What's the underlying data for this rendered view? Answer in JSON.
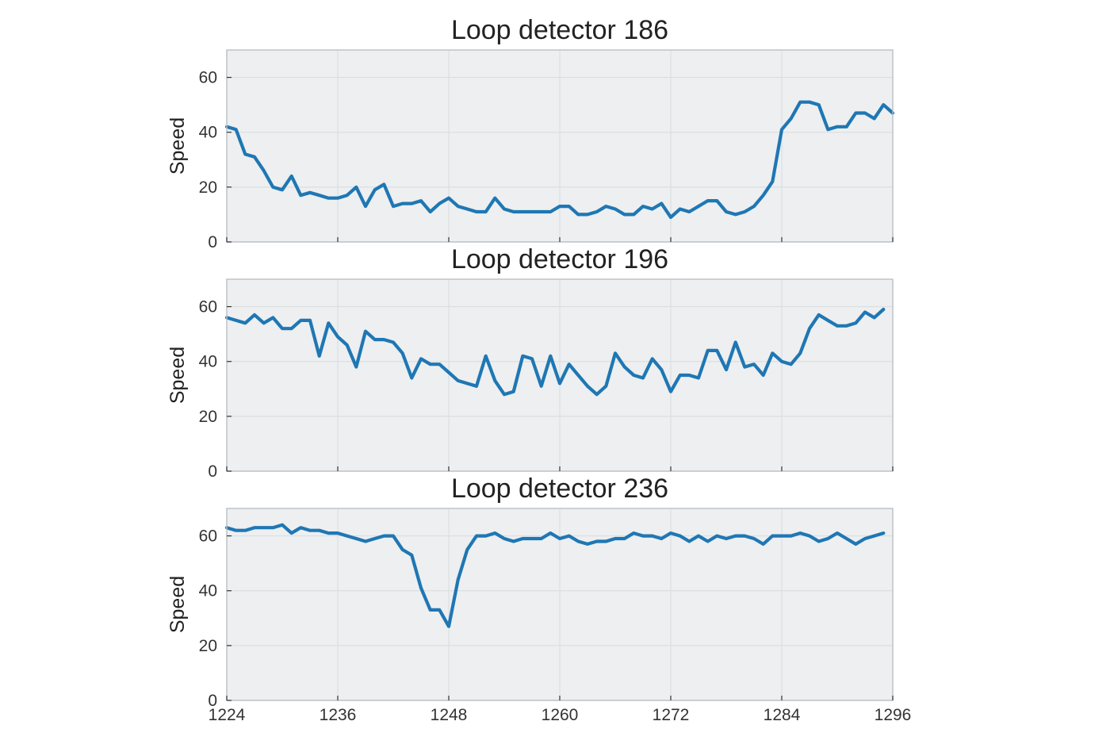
{
  "chart_data": [
    {
      "type": "line",
      "title": "Loop detector 186",
      "xlabel": "",
      "ylabel": "Speed",
      "xlim": [
        1224,
        1296
      ],
      "ylim": [
        0,
        70
      ],
      "yticks": [
        0,
        20,
        40,
        60
      ],
      "xticks": [
        1224,
        1236,
        1248,
        1260,
        1272,
        1284,
        1296
      ],
      "show_xticklabels": false,
      "grid": true,
      "line_color": "#1f77b4",
      "x_start": 1224,
      "x_step": 1,
      "values": [
        42,
        41,
        32,
        31,
        26,
        20,
        19,
        24,
        17,
        18,
        17,
        16,
        16,
        17,
        20,
        13,
        19,
        21,
        13,
        14,
        14,
        15,
        11,
        14,
        16,
        13,
        12,
        11,
        11,
        16,
        12,
        11,
        11,
        11,
        11,
        11,
        13,
        13,
        10,
        10,
        11,
        13,
        12,
        10,
        10,
        13,
        12,
        14,
        9,
        12,
        11,
        13,
        15,
        15,
        11,
        10,
        11,
        13,
        17,
        22,
        41,
        45,
        51,
        51,
        50,
        41,
        42,
        42,
        47,
        47,
        45,
        50,
        47
      ]
    },
    {
      "type": "line",
      "title": "Loop detector 196",
      "xlabel": "",
      "ylabel": "Speed",
      "xlim": [
        1224,
        1296
      ],
      "ylim": [
        0,
        70
      ],
      "yticks": [
        0,
        20,
        40,
        60
      ],
      "xticks": [
        1224,
        1236,
        1248,
        1260,
        1272,
        1284,
        1296
      ],
      "show_xticklabels": false,
      "grid": true,
      "line_color": "#1f77b4",
      "x_start": 1224,
      "x_step": 1,
      "values": [
        56,
        55,
        54,
        57,
        54,
        56,
        52,
        52,
        55,
        55,
        42,
        54,
        49,
        46,
        38,
        51,
        48,
        48,
        47,
        43,
        34,
        41,
        39,
        39,
        36,
        33,
        32,
        31,
        42,
        33,
        28,
        29,
        42,
        41,
        31,
        42,
        32,
        39,
        35,
        31,
        28,
        31,
        43,
        38,
        35,
        34,
        41,
        37,
        29,
        35,
        35,
        34,
        44,
        44,
        37,
        47,
        38,
        39,
        35,
        43,
        40,
        39,
        43,
        52,
        57,
        55,
        53,
        53,
        54,
        58,
        56,
        59
      ]
    },
    {
      "type": "line",
      "title": "Loop detector 236",
      "xlabel": "",
      "ylabel": "Speed",
      "xlim": [
        1224,
        1296
      ],
      "ylim": [
        0,
        70
      ],
      "yticks": [
        0,
        20,
        40,
        60
      ],
      "xticks": [
        1224,
        1236,
        1248,
        1260,
        1272,
        1284,
        1296
      ],
      "show_xticklabels": true,
      "grid": true,
      "line_color": "#1f77b4",
      "x_start": 1224,
      "x_step": 1,
      "values": [
        63,
        62,
        62,
        63,
        63,
        63,
        64,
        61,
        63,
        62,
        62,
        61,
        61,
        60,
        59,
        58,
        59,
        60,
        60,
        55,
        53,
        41,
        33,
        33,
        27,
        44,
        55,
        60,
        60,
        61,
        59,
        58,
        59,
        59,
        59,
        61,
        59,
        60,
        58,
        57,
        58,
        58,
        59,
        59,
        61,
        60,
        60,
        59,
        61,
        60,
        58,
        60,
        58,
        60,
        59,
        60,
        60,
        59,
        57,
        60,
        60,
        60,
        61,
        60,
        58,
        59,
        61,
        59,
        57,
        59,
        60,
        61
      ]
    }
  ]
}
